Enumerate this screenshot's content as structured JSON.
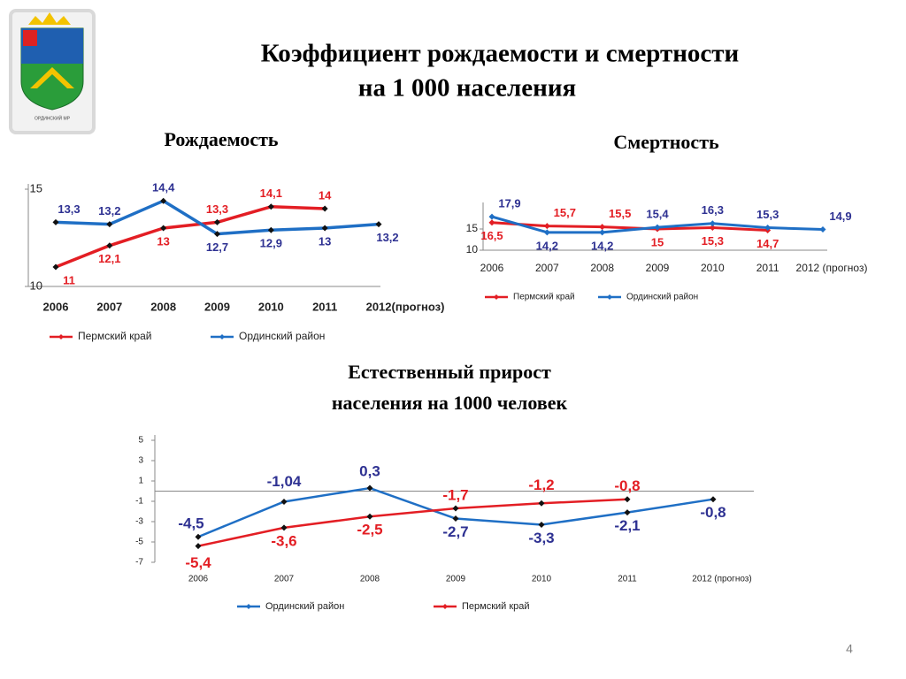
{
  "title": [
    "Коэффициент рождаемости и смертности",
    "на 1 000 населения"
  ],
  "logo_caption": "ОРДИНСКИЙ МР",
  "page_number": "4",
  "chart_data": [
    {
      "type": "line",
      "title": "Рождаемость",
      "categories": [
        "2006",
        "2007",
        "2008",
        "2009",
        "2010",
        "2011",
        "2012(прогноз)"
      ],
      "ylim": [
        10,
        15
      ],
      "yticks": [
        10,
        15
      ],
      "series": [
        {
          "name": "Пермский  край",
          "color": "#e31e24",
          "values": [
            11,
            12.1,
            13,
            13.3,
            14.1,
            14,
            null
          ],
          "value_labels": [
            "11",
            "12,1",
            "13",
            "13,3",
            "14,1",
            "14",
            null
          ]
        },
        {
          "name": "Ординский район",
          "color": "#1f6fc5",
          "values": [
            13.3,
            13.2,
            14.4,
            12.7,
            12.9,
            13,
            13.2
          ],
          "value_labels": [
            "13,3",
            "13,2",
            "14,4",
            "12,7",
            "12,9",
            "13",
            "13,2"
          ]
        }
      ]
    },
    {
      "type": "line",
      "title": "Смертность",
      "categories": [
        "2006",
        "2007",
        "2008",
        "2009",
        "2010",
        "2011",
        "2012 (прогноз)"
      ],
      "ylim": [
        10,
        20
      ],
      "yticks": [
        10,
        15
      ],
      "series": [
        {
          "name": "Пермский край",
          "color": "#e31e24",
          "values": [
            16.5,
            15.7,
            15.5,
            15,
            15.3,
            14.7,
            null
          ],
          "value_labels": [
            "16,5",
            "15,7",
            "15,5",
            "15",
            "15,3",
            "14,7",
            null
          ]
        },
        {
          "name": "Ординский район",
          "color": "#1f6fc5",
          "values": [
            17.9,
            14.2,
            14.2,
            15.4,
            16.3,
            15.3,
            14.9
          ],
          "value_labels": [
            "17,9",
            "14,2",
            "14,2",
            "15,4",
            "16,3",
            "15,3",
            "14,9"
          ]
        }
      ]
    },
    {
      "type": "line",
      "title": [
        "Естественный прирост",
        "населения на 1000 человек"
      ],
      "categories": [
        "2006",
        "2007",
        "2008",
        "2009",
        "2010",
        "2011",
        "2012 (прогноз)"
      ],
      "ylim": [
        -7,
        5
      ],
      "yticks": [
        -7,
        -5,
        -3,
        -1,
        1,
        3,
        5
      ],
      "series": [
        {
          "name": "Ординский район",
          "color": "#1f6fc5",
          "values": [
            -4.5,
            -1.04,
            0.3,
            -2.7,
            -3.3,
            -2.1,
            -0.8
          ],
          "value_labels": [
            "-4,5",
            "-1,04",
            "0,3",
            "-2,7",
            "-3,3",
            "-2,1",
            "-0,8"
          ]
        },
        {
          "name": "Пермский край",
          "color": "#e31e24",
          "values": [
            -5.4,
            -3.6,
            -2.5,
            -1.7,
            -1.2,
            -0.8,
            null
          ],
          "value_labels": [
            "-5,4",
            "-3,6",
            "-2,5",
            "-1,7",
            "-1,2",
            "-0,8",
            null
          ]
        }
      ]
    }
  ]
}
